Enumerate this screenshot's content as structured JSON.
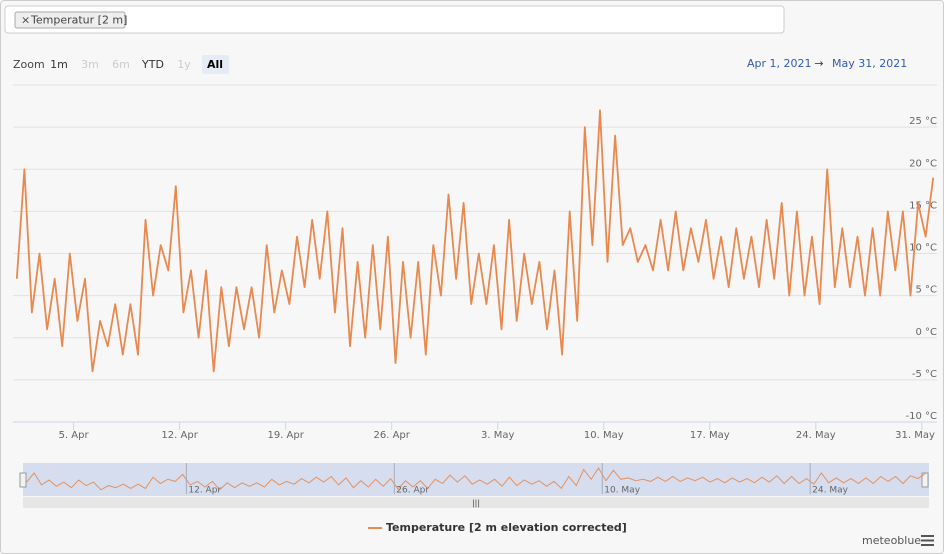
{
  "ui": {
    "filter_tag": "Temperatur [2 m]",
    "zoom_label": "Zoom",
    "zoom_buttons": [
      "1m",
      "3m",
      "6m",
      "YTD",
      "1y",
      "All"
    ],
    "range_from": "Apr 1, 2021",
    "range_to": "May 31, 2021",
    "credit": "meteoblue"
  },
  "chart_data": {
    "type": "line",
    "xlim": [
      "2021-04-01",
      "2021-06-01"
    ],
    "xticks": [
      {
        "value": "2021-04-05",
        "label": "5. Apr"
      },
      {
        "value": "2021-04-12",
        "label": "12. Apr"
      },
      {
        "value": "2021-04-19",
        "label": "19. Apr"
      },
      {
        "value": "2021-04-26",
        "label": "26. Apr"
      },
      {
        "value": "2021-05-03",
        "label": "3. May"
      },
      {
        "value": "2021-05-10",
        "label": "10. May"
      },
      {
        "value": "2021-05-17",
        "label": "17. May"
      },
      {
        "value": "2021-05-24",
        "label": "24. May"
      },
      {
        "value": "2021-05-31",
        "label": "31. May"
      }
    ],
    "ylim": [
      -10,
      30
    ],
    "yticks": [
      {
        "value": -10,
        "label": "-10 °C"
      },
      {
        "value": -5,
        "label": "-5 °C"
      },
      {
        "value": 0,
        "label": "0 °C"
      },
      {
        "value": 5,
        "label": "5 °C"
      },
      {
        "value": 10,
        "label": "10 °C"
      },
      {
        "value": 15,
        "label": "15 °C"
      },
      {
        "value": 20,
        "label": "20 °C"
      },
      {
        "value": 25,
        "label": "25 °C"
      }
    ],
    "grid": true,
    "series": [
      {
        "name": "Temperature [2 m elevation corrected]",
        "color": "#e8894f",
        "values": [
          7,
          20,
          3,
          10,
          1,
          7,
          -1,
          10,
          2,
          7,
          -4,
          2,
          -1,
          4,
          -2,
          4,
          -2,
          14,
          5,
          11,
          8,
          18,
          3,
          8,
          0,
          8,
          -4,
          6,
          -1,
          6,
          1,
          6,
          0,
          11,
          3,
          8,
          4,
          12,
          6,
          14,
          7,
          15,
          3,
          13,
          -1,
          9,
          0,
          11,
          1,
          12,
          -3,
          9,
          0,
          9,
          -2,
          11,
          5,
          17,
          7,
          16,
          4,
          10,
          4,
          11,
          1,
          14,
          2,
          10,
          4,
          9,
          1,
          8,
          -2,
          15,
          2,
          25,
          11,
          27,
          9,
          24,
          11,
          13,
          9,
          11,
          8,
          14,
          8,
          15,
          8,
          13,
          9,
          14,
          7,
          12,
          6,
          13,
          7,
          12,
          6,
          14,
          7,
          16,
          5,
          15,
          5,
          12,
          4,
          20,
          6,
          13,
          6,
          12,
          5,
          13,
          5,
          15,
          8,
          15,
          5,
          16,
          12,
          19
        ]
      }
    ]
  }
}
